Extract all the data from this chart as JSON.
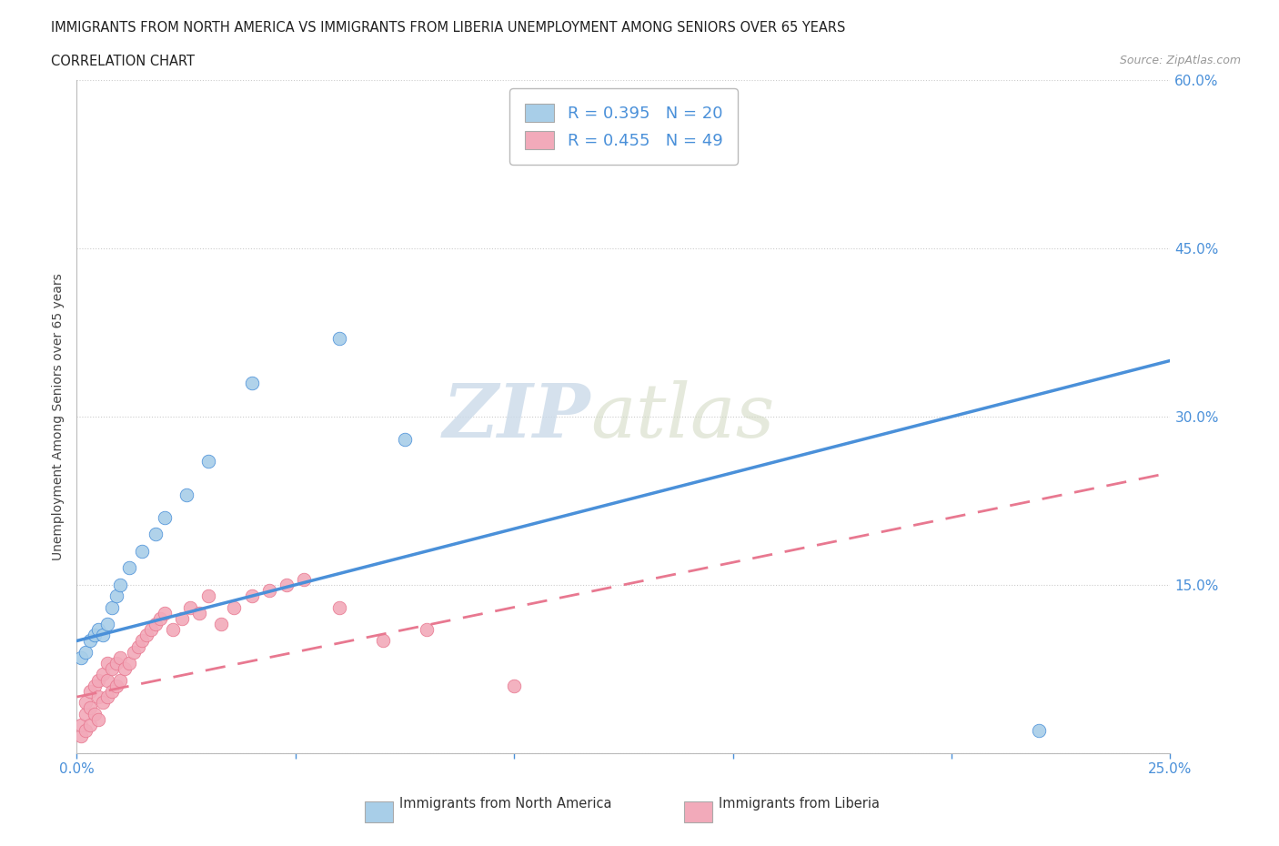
{
  "title_line1": "IMMIGRANTS FROM NORTH AMERICA VS IMMIGRANTS FROM LIBERIA UNEMPLOYMENT AMONG SENIORS OVER 65 YEARS",
  "title_line2": "CORRELATION CHART",
  "source_text": "Source: ZipAtlas.com",
  "ylabel": "Unemployment Among Seniors over 65 years",
  "xlim": [
    0.0,
    0.25
  ],
  "ylim": [
    0.0,
    0.6
  ],
  "xticks": [
    0.0,
    0.05,
    0.1,
    0.15,
    0.2,
    0.25
  ],
  "yticks": [
    0.0,
    0.15,
    0.3,
    0.45,
    0.6
  ],
  "color_north_america": "#A8CEE8",
  "color_liberia": "#F2AABA",
  "trendline_color_na": "#4A90D9",
  "trendline_color_lib": "#E87890",
  "R_na": 0.395,
  "N_na": 20,
  "R_lib": 0.455,
  "N_lib": 49,
  "watermark_zip": "ZIP",
  "watermark_atlas": "atlas",
  "north_america_x": [
    0.001,
    0.002,
    0.003,
    0.004,
    0.005,
    0.006,
    0.007,
    0.008,
    0.009,
    0.01,
    0.012,
    0.015,
    0.018,
    0.02,
    0.025,
    0.03,
    0.04,
    0.06,
    0.075,
    0.22
  ],
  "north_america_y": [
    0.085,
    0.09,
    0.1,
    0.105,
    0.11,
    0.105,
    0.115,
    0.13,
    0.14,
    0.15,
    0.165,
    0.18,
    0.195,
    0.21,
    0.23,
    0.26,
    0.33,
    0.37,
    0.28,
    0.02
  ],
  "liberia_x": [
    0.001,
    0.001,
    0.002,
    0.002,
    0.002,
    0.003,
    0.003,
    0.003,
    0.004,
    0.004,
    0.005,
    0.005,
    0.005,
    0.006,
    0.006,
    0.007,
    0.007,
    0.007,
    0.008,
    0.008,
    0.009,
    0.009,
    0.01,
    0.01,
    0.011,
    0.012,
    0.013,
    0.014,
    0.015,
    0.016,
    0.017,
    0.018,
    0.019,
    0.02,
    0.022,
    0.024,
    0.026,
    0.028,
    0.03,
    0.033,
    0.036,
    0.04,
    0.044,
    0.048,
    0.052,
    0.06,
    0.07,
    0.08,
    0.1
  ],
  "liberia_y": [
    0.015,
    0.025,
    0.02,
    0.035,
    0.045,
    0.025,
    0.04,
    0.055,
    0.035,
    0.06,
    0.03,
    0.05,
    0.065,
    0.045,
    0.07,
    0.05,
    0.065,
    0.08,
    0.055,
    0.075,
    0.06,
    0.08,
    0.065,
    0.085,
    0.075,
    0.08,
    0.09,
    0.095,
    0.1,
    0.105,
    0.11,
    0.115,
    0.12,
    0.125,
    0.11,
    0.12,
    0.13,
    0.125,
    0.14,
    0.115,
    0.13,
    0.14,
    0.145,
    0.15,
    0.155,
    0.13,
    0.1,
    0.11,
    0.06
  ],
  "na_trendline_x": [
    0.0,
    0.25
  ],
  "na_trendline_y": [
    0.1,
    0.35
  ],
  "lib_trendline_x": [
    0.0,
    0.25
  ],
  "lib_trendline_y": [
    0.05,
    0.25
  ]
}
